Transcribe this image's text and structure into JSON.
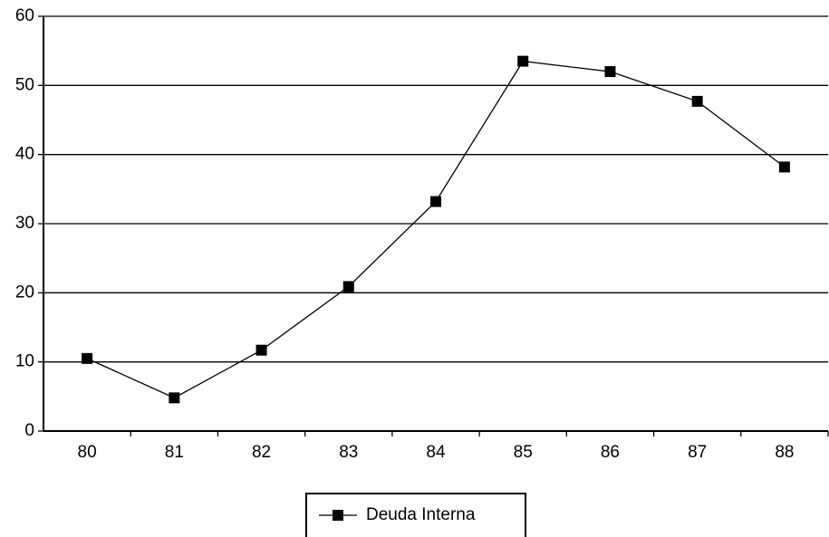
{
  "chart_data": {
    "type": "line",
    "categories": [
      "80",
      "81",
      "82",
      "83",
      "84",
      "85",
      "86",
      "87",
      "88"
    ],
    "series": [
      {
        "name": "Deuda Interna",
        "color": "#000000",
        "values": [
          10.5,
          4.8,
          11.7,
          20.9,
          33.2,
          53.5,
          52,
          47.7,
          38.2
        ]
      }
    ],
    "ylim": [
      0,
      60
    ],
    "yticks": [
      0,
      10,
      20,
      30,
      40,
      50,
      60
    ],
    "grid": true,
    "legend": "bottom"
  }
}
